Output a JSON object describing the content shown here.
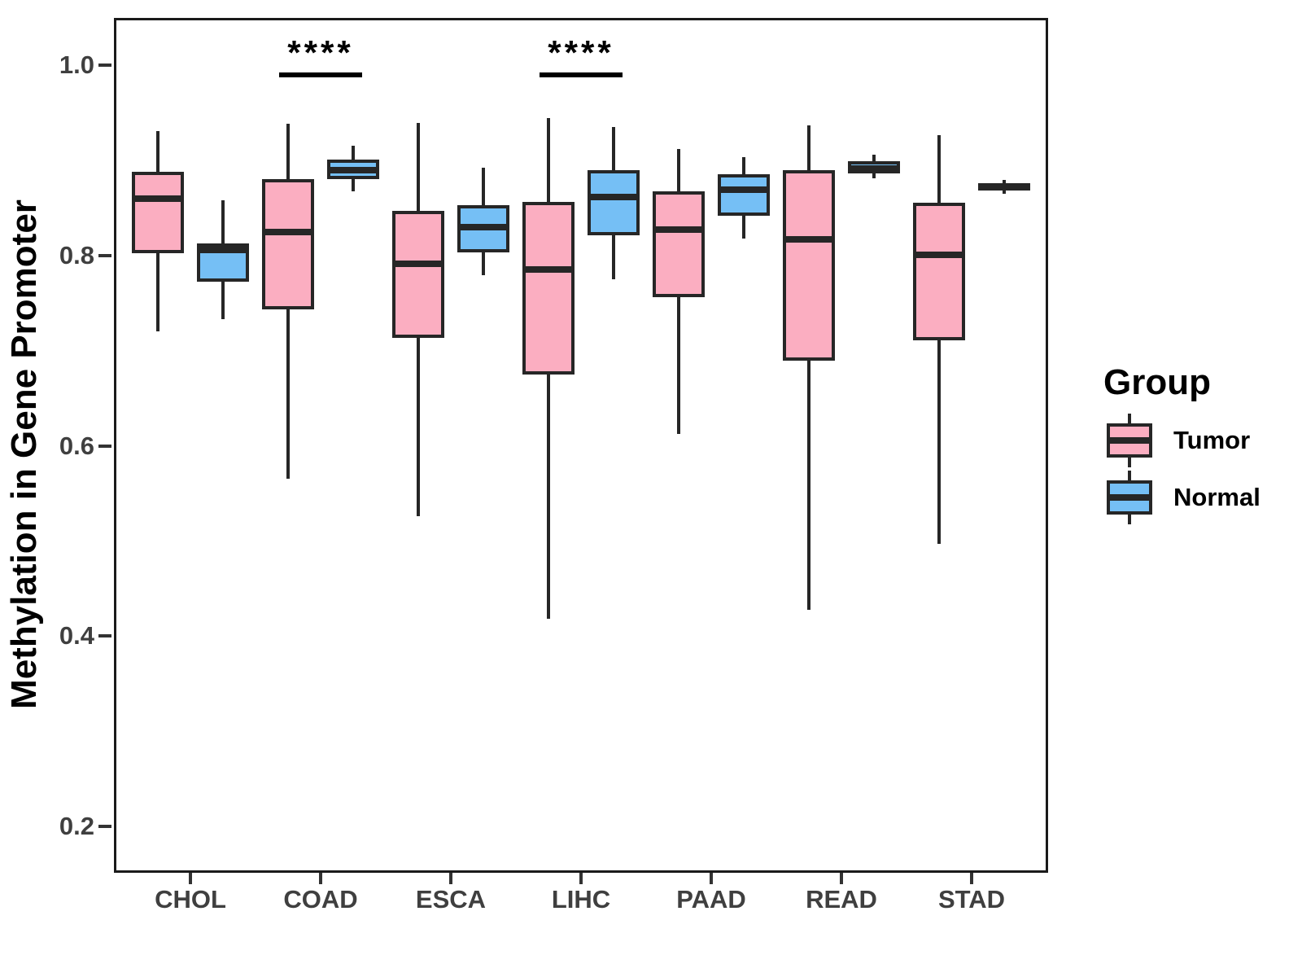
{
  "chart_data": {
    "type": "boxplot",
    "title": "",
    "xlabel": "",
    "ylabel": "Methylation in Gene Promoter",
    "categories": [
      "CHOL",
      "COAD",
      "ESCA",
      "LIHC",
      "PAAD",
      "READ",
      "STAD"
    ],
    "yticks": [
      {
        "label": "1.0",
        "value": 1.0
      },
      {
        "label": "0.8",
        "value": 0.8
      },
      {
        "label": "0.6",
        "value": 0.6
      },
      {
        "label": "0.4",
        "value": 0.4
      },
      {
        "label": "0.2",
        "value": 0.2
      }
    ],
    "ylim": [
      0.15,
      1.05
    ],
    "grid": "off",
    "line_color": "#262626",
    "legend": {
      "title": "Group",
      "position": "right",
      "entries": [
        {
          "label": "Tumor",
          "color": "#FBAEC1"
        },
        {
          "label": "Normal",
          "color": "#75BFF5"
        }
      ]
    },
    "series": [
      {
        "name": "Tumor",
        "color": "#FBAEC1",
        "boxes": [
          {
            "category": "CHOL",
            "min": 0.72,
            "q1": 0.802,
            "median": 0.86,
            "q3": 0.888,
            "max": 0.931
          },
          {
            "category": "COAD",
            "min": 0.565,
            "q1": 0.743,
            "median": 0.825,
            "q3": 0.88,
            "max": 0.938
          },
          {
            "category": "ESCA",
            "min": 0.526,
            "q1": 0.713,
            "median": 0.791,
            "q3": 0.847,
            "max": 0.939
          },
          {
            "category": "LIHC",
            "min": 0.418,
            "q1": 0.675,
            "median": 0.785,
            "q3": 0.856,
            "max": 0.944
          },
          {
            "category": "PAAD",
            "min": 0.612,
            "q1": 0.756,
            "median": 0.827,
            "q3": 0.867,
            "max": 0.912
          },
          {
            "category": "READ",
            "min": 0.428,
            "q1": 0.689,
            "median": 0.817,
            "q3": 0.89,
            "max": 0.937
          },
          {
            "category": "STAD",
            "min": 0.497,
            "q1": 0.711,
            "median": 0.801,
            "q3": 0.855,
            "max": 0.926
          }
        ]
      },
      {
        "name": "Normal",
        "color": "#75BFF5",
        "boxes": [
          {
            "category": "CHOL",
            "min": 0.733,
            "q1": 0.772,
            "median": 0.806,
            "q3": 0.813,
            "max": 0.858
          },
          {
            "category": "COAD",
            "min": 0.867,
            "q1": 0.88,
            "median": 0.89,
            "q3": 0.901,
            "max": 0.915
          },
          {
            "category": "ESCA",
            "min": 0.779,
            "q1": 0.803,
            "median": 0.83,
            "q3": 0.853,
            "max": 0.892
          },
          {
            "category": "LIHC",
            "min": 0.775,
            "q1": 0.821,
            "median": 0.861,
            "q3": 0.89,
            "max": 0.935
          },
          {
            "category": "PAAD",
            "min": 0.818,
            "q1": 0.842,
            "median": 0.869,
            "q3": 0.885,
            "max": 0.903
          },
          {
            "category": "READ",
            "min": 0.881,
            "q1": 0.886,
            "median": 0.891,
            "q3": 0.899,
            "max": 0.906
          },
          {
            "category": "STAD",
            "min": 0.865,
            "q1": 0.868,
            "median": 0.872,
            "q3": 0.876,
            "max": 0.879
          }
        ]
      }
    ],
    "significance": [
      {
        "category": "COAD",
        "label": "****"
      },
      {
        "category": "LIHC",
        "label": "****"
      }
    ]
  }
}
